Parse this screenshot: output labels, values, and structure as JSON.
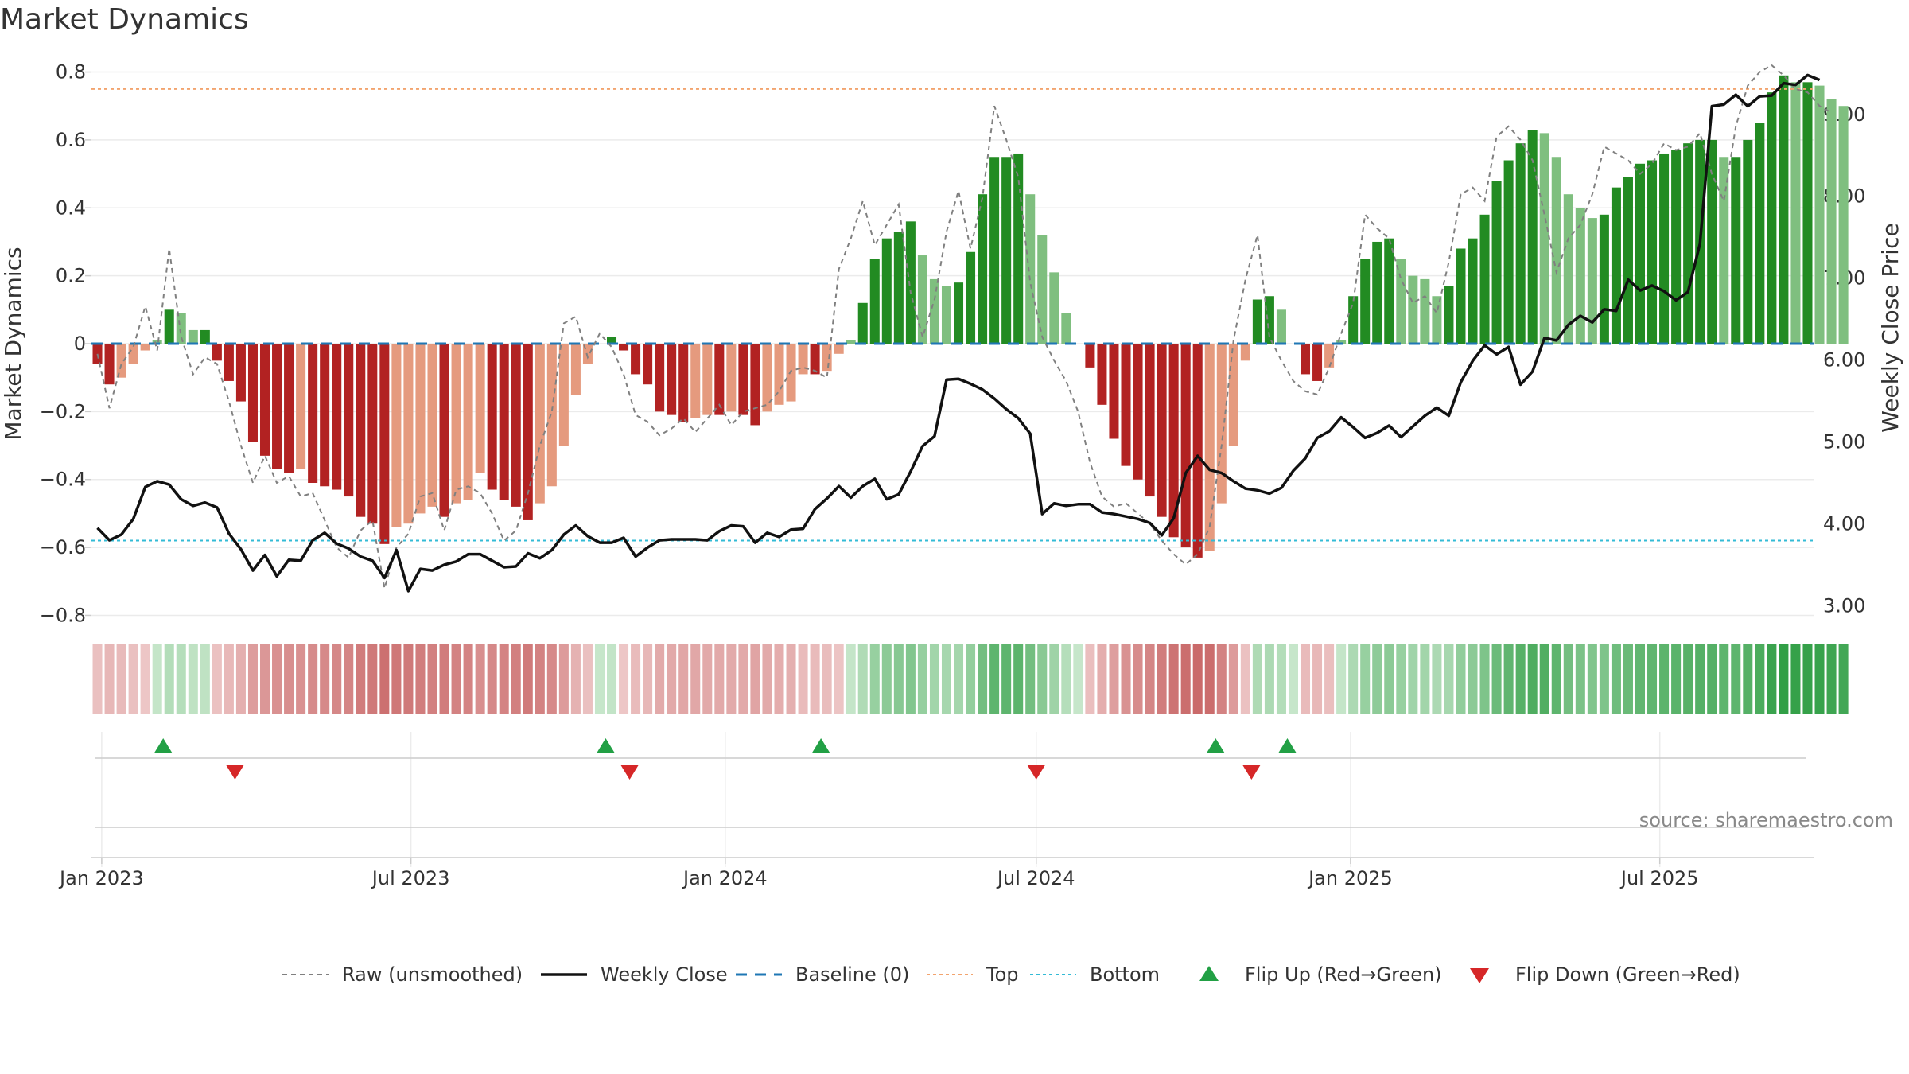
{
  "chart_data": {
    "type": "bar",
    "title": "Market Dynamics",
    "ylabel": "Market Dynamics",
    "y2label": "Weekly Close Price",
    "ylim": [
      -0.82,
      0.82
    ],
    "y2lim": [
      2.8,
      9.6
    ],
    "yticks": [
      "0.8",
      "0.6",
      "0.4",
      "0.2",
      "0",
      "−0.2",
      "−0.4",
      "−0.6",
      "−0.8"
    ],
    "yticks_values": [
      0.8,
      0.6,
      0.4,
      0.2,
      0,
      -0.2,
      -0.4,
      -0.6,
      -0.8
    ],
    "y2ticks": [
      "9.00",
      "8.00",
      "7.00",
      "6.00",
      "5.00",
      "4.00",
      "3.00"
    ],
    "y2ticks_values": [
      9,
      8,
      7,
      6,
      5,
      4,
      3
    ],
    "x_start": "2022-12-26",
    "x_end": "2025-09-29",
    "xticks": [
      {
        "date": "2023-01-01",
        "label": "Jan 2023"
      },
      {
        "date": "2023-07-01",
        "label": "Jul 2023"
      },
      {
        "date": "2024-01-01",
        "label": "Jan 2024"
      },
      {
        "date": "2024-07-01",
        "label": "Jul 2024"
      },
      {
        "date": "2025-01-01",
        "label": "Jan 2025"
      },
      {
        "date": "2025-07-01",
        "label": "Jul 2025"
      }
    ],
    "top_level": 0.75,
    "bottom_level": -0.58,
    "baseline": 0,
    "grid": true,
    "legend_position": "bottom",
    "series": [
      {
        "name": "Raw (unsmoothed)",
        "kind": "dashed-line"
      },
      {
        "name": "Weekly Close",
        "kind": "line"
      },
      {
        "name": "Baseline (0)",
        "kind": "dashed-line"
      },
      {
        "name": "Top",
        "kind": "dotted-line"
      },
      {
        "name": "Bottom",
        "kind": "dotted-line"
      },
      {
        "name": "Flip Up (Red→Green)",
        "kind": "marker-up"
      },
      {
        "name": "Flip Down (Green→Red)",
        "kind": "marker-down"
      }
    ],
    "source": "source: sharemaestro.com",
    "flip_up_dates": [
      "2023-02-06",
      "2023-10-23",
      "2024-02-26",
      "2024-10-14",
      "2024-11-25"
    ],
    "flip_down_dates": [
      "2023-03-20",
      "2023-11-06",
      "2024-07-01",
      "2024-11-04"
    ],
    "dynamics": [
      -0.06,
      -0.12,
      -0.1,
      -0.06,
      -0.02,
      0.01,
      0.1,
      0.09,
      0.04,
      0.04,
      -0.05,
      -0.11,
      -0.17,
      -0.29,
      -0.33,
      -0.37,
      -0.38,
      -0.37,
      -0.41,
      -0.42,
      -0.43,
      -0.45,
      -0.51,
      -0.53,
      -0.59,
      -0.54,
      -0.53,
      -0.5,
      -0.48,
      -0.51,
      -0.47,
      -0.46,
      -0.38,
      -0.43,
      -0.46,
      -0.48,
      -0.52,
      -0.47,
      -0.42,
      -0.3,
      -0.15,
      -0.06,
      0,
      0.02,
      -0.02,
      -0.09,
      -0.12,
      -0.2,
      -0.21,
      -0.23,
      -0.22,
      -0.21,
      -0.21,
      -0.2,
      -0.21,
      -0.24,
      -0.2,
      -0.18,
      -0.17,
      -0.09,
      -0.09,
      -0.08,
      -0.03,
      0.01,
      0.12,
      0.25,
      0.31,
      0.33,
      0.36,
      0.26,
      0.19,
      0.17,
      0.18,
      0.27,
      0.44,
      0.55,
      0.55,
      0.56,
      0.44,
      0.32,
      0.21,
      0.09,
      0,
      -0.07,
      -0.18,
      -0.28,
      -0.36,
      -0.4,
      -0.45,
      -0.51,
      -0.57,
      -0.6,
      -0.63,
      -0.61,
      -0.47,
      -0.3,
      -0.05,
      0.13,
      0.14,
      0.1,
      0,
      -0.09,
      -0.11,
      -0.07,
      0.01,
      0.14,
      0.25,
      0.3,
      0.31,
      0.25,
      0.2,
      0.19,
      0.14,
      0.17,
      0.28,
      0.31,
      0.38,
      0.48,
      0.54,
      0.59,
      0.63,
      0.62,
      0.55,
      0.44,
      0.4,
      0.37,
      0.38,
      0.46,
      0.49,
      0.53,
      0.54,
      0.56,
      0.57,
      0.59,
      0.6,
      0.6,
      0.55,
      0.55,
      0.6,
      0.65,
      0.74,
      0.79,
      0.77,
      0.77,
      0.76,
      0.72,
      0.7
    ],
    "raw": [
      -0.03,
      -0.19,
      -0.06,
      -0.01,
      0.11,
      -0.02,
      0.28,
      0.02,
      -0.09,
      -0.04,
      -0.06,
      -0.17,
      -0.3,
      -0.41,
      -0.33,
      -0.41,
      -0.39,
      -0.45,
      -0.44,
      -0.52,
      -0.6,
      -0.63,
      -0.55,
      -0.52,
      -0.72,
      -0.6,
      -0.56,
      -0.45,
      -0.44,
      -0.55,
      -0.43,
      -0.42,
      -0.44,
      -0.5,
      -0.58,
      -0.55,
      -0.44,
      -0.3,
      -0.2,
      0.06,
      0.08,
      -0.04,
      0.03,
      -0.01,
      -0.09,
      -0.21,
      -0.23,
      -0.27,
      -0.25,
      -0.22,
      -0.26,
      -0.22,
      -0.18,
      -0.24,
      -0.2,
      -0.19,
      -0.18,
      -0.14,
      -0.08,
      -0.07,
      -0.08,
      -0.1,
      0.22,
      0.31,
      0.42,
      0.29,
      0.35,
      0.41,
      0.15,
      0.02,
      0.13,
      0.33,
      0.45,
      0.28,
      0.43,
      0.7,
      0.6,
      0.49,
      0.18,
      0.02,
      -0.05,
      -0.11,
      -0.2,
      -0.35,
      -0.45,
      -0.48,
      -0.47,
      -0.5,
      -0.53,
      -0.58,
      -0.62,
      -0.65,
      -0.62,
      -0.54,
      -0.3,
      0.01,
      0.19,
      0.32,
      0.02,
      -0.05,
      -0.11,
      -0.14,
      -0.15,
      -0.07,
      0.03,
      0.12,
      0.38,
      0.34,
      0.31,
      0.19,
      0.12,
      0.14,
      0.09,
      0.24,
      0.44,
      0.46,
      0.42,
      0.61,
      0.64,
      0.6,
      0.54,
      0.38,
      0.21,
      0.31,
      0.35,
      0.44,
      0.58,
      0.56,
      0.54,
      0.5,
      0.53,
      0.59,
      0.57,
      0.58,
      0.62,
      0.5,
      0.42,
      0.64,
      0.76,
      0.8,
      0.82,
      0.79,
      0.75,
      0.74,
      0.7,
      0.68
    ],
    "close": [
      3.95,
      3.8,
      3.87,
      4.06,
      4.45,
      4.52,
      4.48,
      4.3,
      4.22,
      4.26,
      4.2,
      3.88,
      3.69,
      3.43,
      3.62,
      3.36,
      3.56,
      3.55,
      3.8,
      3.89,
      3.76,
      3.7,
      3.6,
      3.55,
      3.34,
      3.68,
      3.18,
      3.45,
      3.43,
      3.5,
      3.54,
      3.63,
      3.63,
      3.55,
      3.47,
      3.48,
      3.64,
      3.58,
      3.68,
      3.87,
      3.98,
      3.85,
      3.77,
      3.77,
      3.83,
      3.6,
      3.71,
      3.8,
      3.81,
      3.81,
      3.81,
      3.8,
      3.91,
      3.98,
      3.97,
      3.77,
      3.89,
      3.84,
      3.93,
      3.94,
      4.18,
      4.31,
      4.46,
      4.32,
      4.46,
      4.55,
      4.3,
      4.36,
      4.64,
      4.95,
      5.07,
      5.76,
      5.77,
      5.71,
      5.64,
      5.53,
      5.4,
      5.29,
      5.1,
      4.12,
      4.25,
      4.22,
      4.24,
      4.24,
      4.14,
      4.12,
      4.09,
      4.06,
      4.01,
      3.86,
      4.07,
      4.62,
      4.83,
      4.66,
      4.62,
      4.52,
      4.43,
      4.41,
      4.37,
      4.44,
      4.65,
      4.8,
      5.05,
      5.13,
      5.3,
      5.18,
      5.05,
      5.11,
      5.2,
      5.06,
      5.19,
      5.32,
      5.42,
      5.32,
      5.73,
      5.99,
      6.18,
      6.07,
      6.16,
      5.7,
      5.86,
      6.27,
      6.24,
      6.43,
      6.54,
      6.46,
      6.62,
      6.6,
      6.98,
      6.85,
      6.91,
      6.84,
      6.73,
      6.83,
      7.42,
      9.1,
      9.12,
      9.24,
      9.1,
      9.22,
      9.23,
      9.38,
      9.36,
      9.48,
      9.42
    ]
  },
  "colors": {
    "strong_green": "#228B22",
    "light_green": "#7FBF7F",
    "strong_red": "#B22222",
    "light_red": "#E59A7E",
    "top_line": "#F2A46F",
    "bottom_line": "#33BBD6",
    "baseline": "#1F77B4",
    "raw_line": "#808080",
    "close_line": "#111111",
    "flip_up": "#22A045",
    "flip_down": "#D62728"
  }
}
